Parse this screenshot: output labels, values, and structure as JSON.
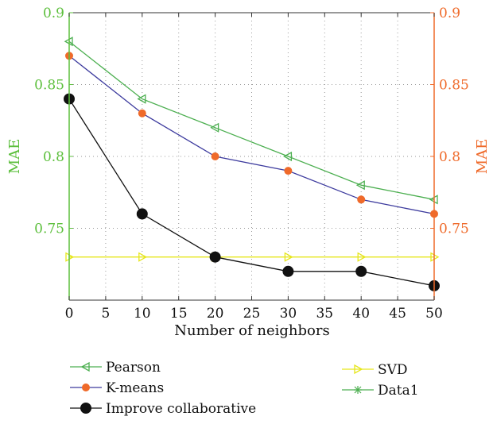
{
  "chart_data": {
    "type": "line",
    "xlabel": "Number of neighbors",
    "ylabel_left": "MAE",
    "ylabel_right": "MAE",
    "xlim": [
      0,
      50
    ],
    "ylim": [
      0.7,
      0.9
    ],
    "x_ticks": [
      0,
      5,
      10,
      15,
      20,
      25,
      30,
      35,
      40,
      45,
      50
    ],
    "y_ticks_left": [
      0.75,
      0.8,
      0.85,
      0.9
    ],
    "y_ticks_right": [
      0.75,
      0.8,
      0.85,
      0.9
    ],
    "grid": true,
    "legend_position": "bottom",
    "colors": {
      "left_axis": "#5cbf3c",
      "right_axis": "#ef6a2a"
    },
    "series": [
      {
        "name": "Pearson",
        "color": "#4caf50",
        "marker": "triangle-left",
        "x": [
          0,
          10,
          20,
          30,
          40,
          50
        ],
        "values": [
          0.88,
          0.84,
          0.82,
          0.8,
          0.78,
          0.77
        ]
      },
      {
        "name": "K-means",
        "color": "#3d3b9e",
        "marker": "circle-orange",
        "x": [
          0,
          10,
          20,
          30,
          40,
          50
        ],
        "values": [
          0.87,
          0.83,
          0.8,
          0.79,
          0.77,
          0.76
        ]
      },
      {
        "name": "Improve collaborative",
        "color": "#111111",
        "marker": "circle-black",
        "x": [
          0,
          10,
          20,
          30,
          40,
          50
        ],
        "values": [
          0.84,
          0.76,
          0.73,
          0.72,
          0.72,
          0.71
        ]
      },
      {
        "name": "SVD",
        "color": "#e6e61a",
        "marker": "triangle-right",
        "x": [
          0,
          10,
          20,
          30,
          40,
          50
        ],
        "values": [
          0.73,
          0.73,
          0.73,
          0.73,
          0.73,
          0.73
        ]
      },
      {
        "name": "Data1",
        "color": "#4caf50",
        "marker": "star",
        "x": [],
        "values": []
      }
    ]
  }
}
